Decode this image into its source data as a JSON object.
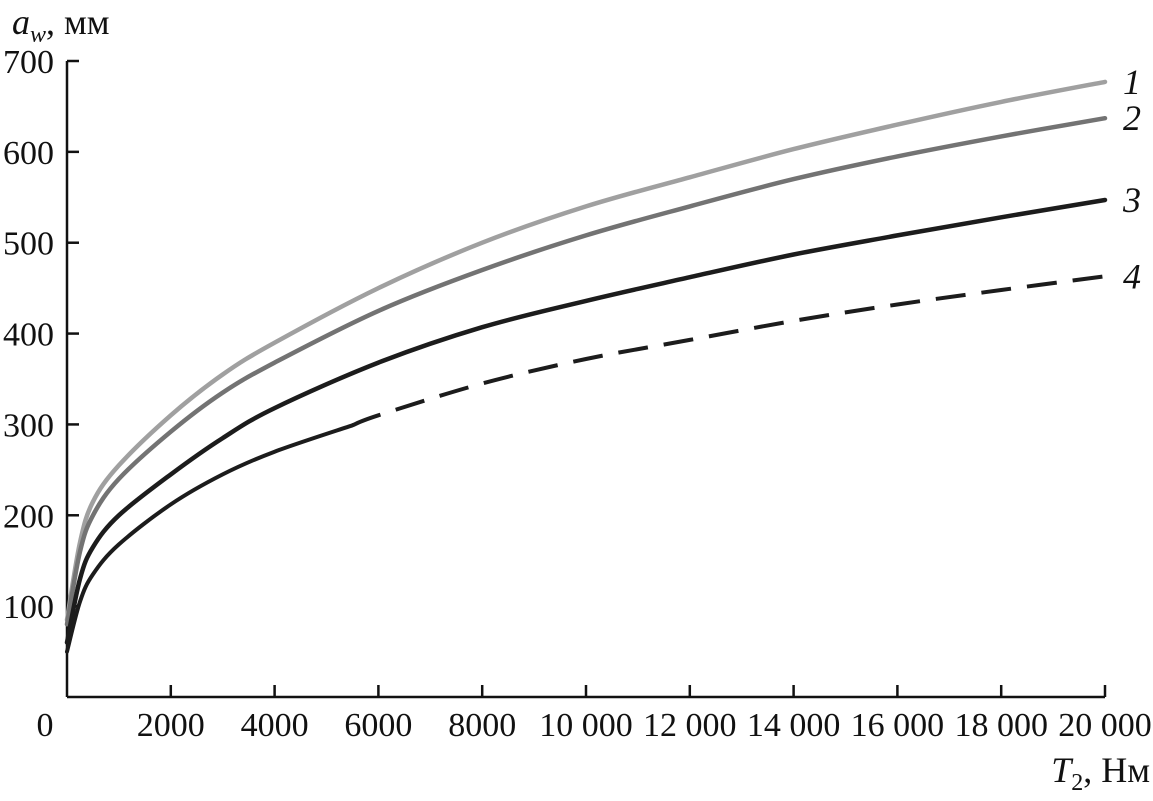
{
  "chart_data": {
    "type": "line",
    "xlabel": {
      "main": "T",
      "sub": "2",
      "rest": ", Нм"
    },
    "ylabel": {
      "main": "a",
      "sub": "w",
      "rest": ", мм"
    },
    "xlim": [
      0,
      20000
    ],
    "ylim": [
      0,
      700
    ],
    "x_ticks": [
      {
        "value": 0,
        "label": "0"
      },
      {
        "value": 2000,
        "label": "2000"
      },
      {
        "value": 4000,
        "label": "4000"
      },
      {
        "value": 6000,
        "label": "6000"
      },
      {
        "value": 8000,
        "label": "8000"
      },
      {
        "value": 10000,
        "label": "10 000"
      },
      {
        "value": 12000,
        "label": "12 000"
      },
      {
        "value": 14000,
        "label": "14 000"
      },
      {
        "value": 16000,
        "label": "16 000"
      },
      {
        "value": 18000,
        "label": "18 000"
      },
      {
        "value": 20000,
        "label": "20 000"
      }
    ],
    "y_ticks": [
      {
        "value": 100,
        "label": "100"
      },
      {
        "value": 200,
        "label": "200"
      },
      {
        "value": 300,
        "label": "300"
      },
      {
        "value": 400,
        "label": "400"
      },
      {
        "value": 500,
        "label": "500"
      },
      {
        "value": 600,
        "label": "600"
      },
      {
        "value": 700,
        "label": "700"
      }
    ],
    "grid": false,
    "series": [
      {
        "label": "1",
        "color": "#a0a0a0",
        "style": "solid",
        "x": [
          0,
          250,
          500,
          1000,
          2000,
          3000,
          4000,
          6000,
          8000,
          10000,
          12000,
          14000,
          16000,
          18000,
          20000
        ],
        "y": [
          85,
          170,
          215,
          255,
          310,
          355,
          390,
          450,
          500,
          540,
          572,
          603,
          630,
          655,
          677
        ]
      },
      {
        "label": "2",
        "color": "#737373",
        "style": "solid",
        "x": [
          0,
          250,
          500,
          1000,
          2000,
          3000,
          4000,
          6000,
          8000,
          10000,
          12000,
          14000,
          16000,
          18000,
          20000
        ],
        "y": [
          80,
          160,
          200,
          240,
          292,
          335,
          368,
          425,
          470,
          508,
          540,
          570,
          595,
          617,
          637
        ]
      },
      {
        "label": "3",
        "color": "#1c1c1c",
        "style": "solid",
        "x": [
          0,
          250,
          500,
          1000,
          2000,
          3000,
          4000,
          6000,
          8000,
          10000,
          12000,
          14000,
          16000,
          18000,
          20000
        ],
        "y": [
          60,
          130,
          165,
          200,
          245,
          285,
          318,
          368,
          407,
          436,
          462,
          487,
          508,
          528,
          547
        ]
      },
      {
        "label": "4",
        "color": "#1c1c1c",
        "style": "solid-then-dashed",
        "dash_from_x": 5500,
        "x": [
          0,
          250,
          500,
          1000,
          2000,
          3000,
          4000,
          5500,
          6000,
          8000,
          10000,
          12000,
          14000,
          16000,
          18000,
          20000
        ],
        "y": [
          50,
          105,
          135,
          168,
          212,
          245,
          270,
          299,
          310,
          345,
          372,
          393,
          414,
          432,
          448,
          463
        ]
      }
    ]
  }
}
